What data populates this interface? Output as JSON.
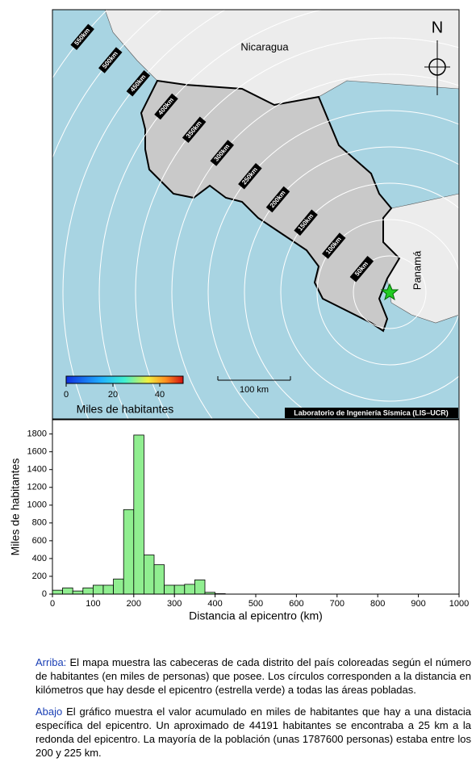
{
  "map": {
    "country_labels": [
      "Nicaragua",
      "Panamá"
    ],
    "north": "N",
    "rings": [
      {
        "value": 50,
        "label": "50km"
      },
      {
        "value": 100,
        "label": "100km"
      },
      {
        "value": 150,
        "label": "150km"
      },
      {
        "value": 200,
        "label": "200km"
      },
      {
        "value": 250,
        "label": "250km"
      },
      {
        "value": 300,
        "label": "300km"
      },
      {
        "value": 350,
        "label": "350km"
      },
      {
        "value": 400,
        "label": "400km"
      },
      {
        "value": 450,
        "label": "450km"
      },
      {
        "value": 500,
        "label": "500km"
      },
      {
        "value": 550,
        "label": "550km"
      }
    ],
    "colorbar": {
      "label": "Miles de habitantes",
      "lim": [
        0,
        50
      ],
      "ticks": [
        0,
        20,
        40
      ]
    },
    "scale_bar": "100 km",
    "credit": "Laboratorio de Ingeniería Sísmica (LIS–UCR)"
  },
  "chart_data": {
    "type": "histogram",
    "xlabel": "Distancia al epicentro (km)",
    "ylabel": "Miles de habitantes",
    "bins": [
      0,
      25,
      50,
      75,
      100,
      125,
      150,
      175,
      200,
      225,
      250,
      275,
      300,
      325,
      350,
      375,
      400,
      425
    ],
    "values": [
      44,
      70,
      35,
      70,
      100,
      100,
      170,
      950,
      1788,
      440,
      330,
      100,
      100,
      110,
      160,
      20,
      5
    ],
    "color": "#90ee90",
    "xlim": [
      0,
      1000
    ],
    "xticks": [
      0,
      100,
      200,
      300,
      400,
      500,
      600,
      700,
      800,
      900,
      1000
    ],
    "ylim": [
      0,
      1960
    ],
    "yticks": [
      0,
      200,
      400,
      600,
      800,
      1000,
      1200,
      1400,
      1600,
      1800
    ]
  },
  "notes": [
    {
      "lead": "Arriba:",
      "text": "El mapa muestra las cabeceras de cada distrito del país coloreadas según el número de habitantes (en miles de personas) que posee.  Los círculos corresponden a la distancia en kilómetros que hay desde el epicentro (estrella verde) a todas las áreas pobladas."
    },
    {
      "lead": "Abajo",
      "text": "El gráfico muestra el valor acumulado en miles de habitantes que hay a una distacia específica del epicentro.  Un aproximado de 44191 habitantes se encontraba a 25 km a la redonda del epicentro.  La mayoría de la población (unas 1787600 personas) estaba entre los 200 y 225 km."
    }
  ]
}
